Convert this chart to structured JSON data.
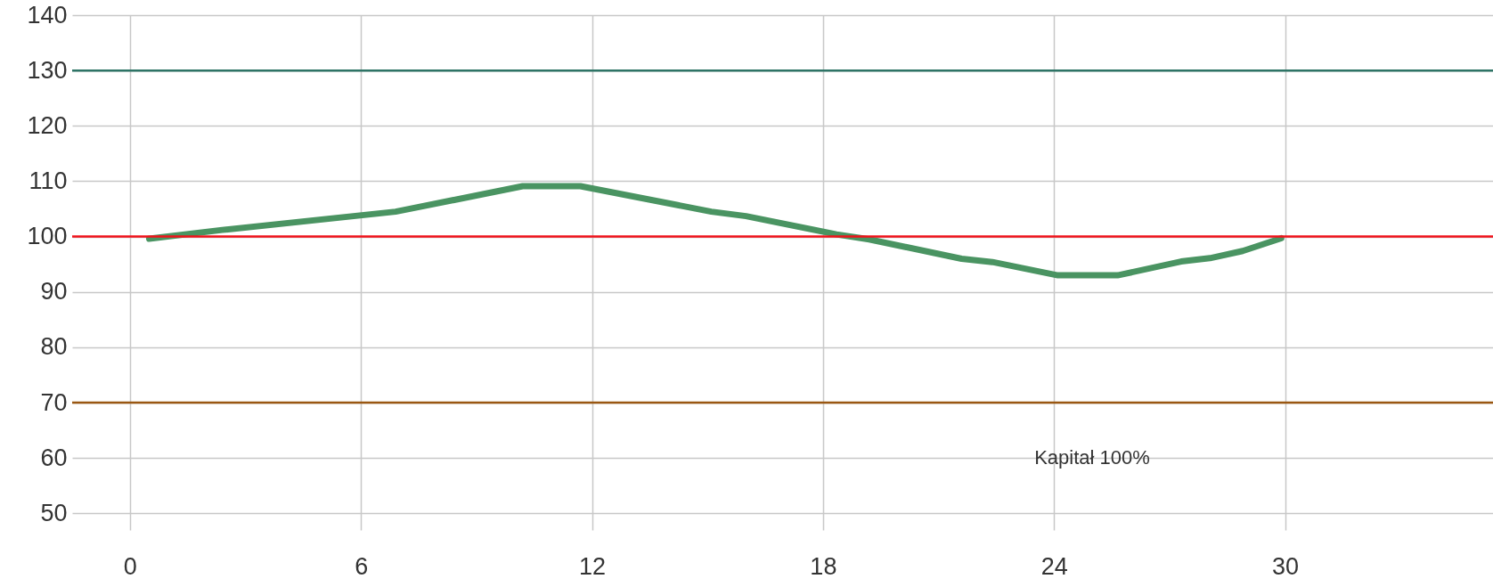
{
  "chart_data": {
    "type": "line",
    "x": [
      0.5,
      2.4,
      6.9,
      10.2,
      11.7,
      15.1,
      16.0,
      18.35,
      19.2,
      21.6,
      22.4,
      24.1,
      25.65,
      27.3,
      28.05,
      28.9,
      29.9
    ],
    "series": [
      {
        "color": "#4a9462",
        "values": [
          99.6,
          101.2,
          104.5,
          109.1,
          109.1,
          104.5,
          103.7,
          100.4,
          99.5,
          96.0,
          95.4,
          93.0,
          93.0,
          95.5,
          96.1,
          97.4,
          99.7
        ]
      }
    ],
    "xlim": [
      -1.5,
      35.4
    ],
    "xticks": [
      0,
      6,
      12,
      18,
      24,
      30
    ],
    "ylim": [
      47,
      140
    ],
    "yticks": [
      50,
      60,
      70,
      80,
      90,
      100,
      110,
      120,
      130,
      140
    ],
    "ref_lines": [
      {
        "axis": "y",
        "value": 130,
        "color": "#2e7466"
      },
      {
        "axis": "y",
        "value": 100,
        "color": "#f0121a"
      },
      {
        "axis": "y",
        "value": 70,
        "color": "#9a5712"
      }
    ],
    "annotations": [
      "Kapitał 100%"
    ],
    "grid": true,
    "marker": "none",
    "line_style": "solid"
  }
}
